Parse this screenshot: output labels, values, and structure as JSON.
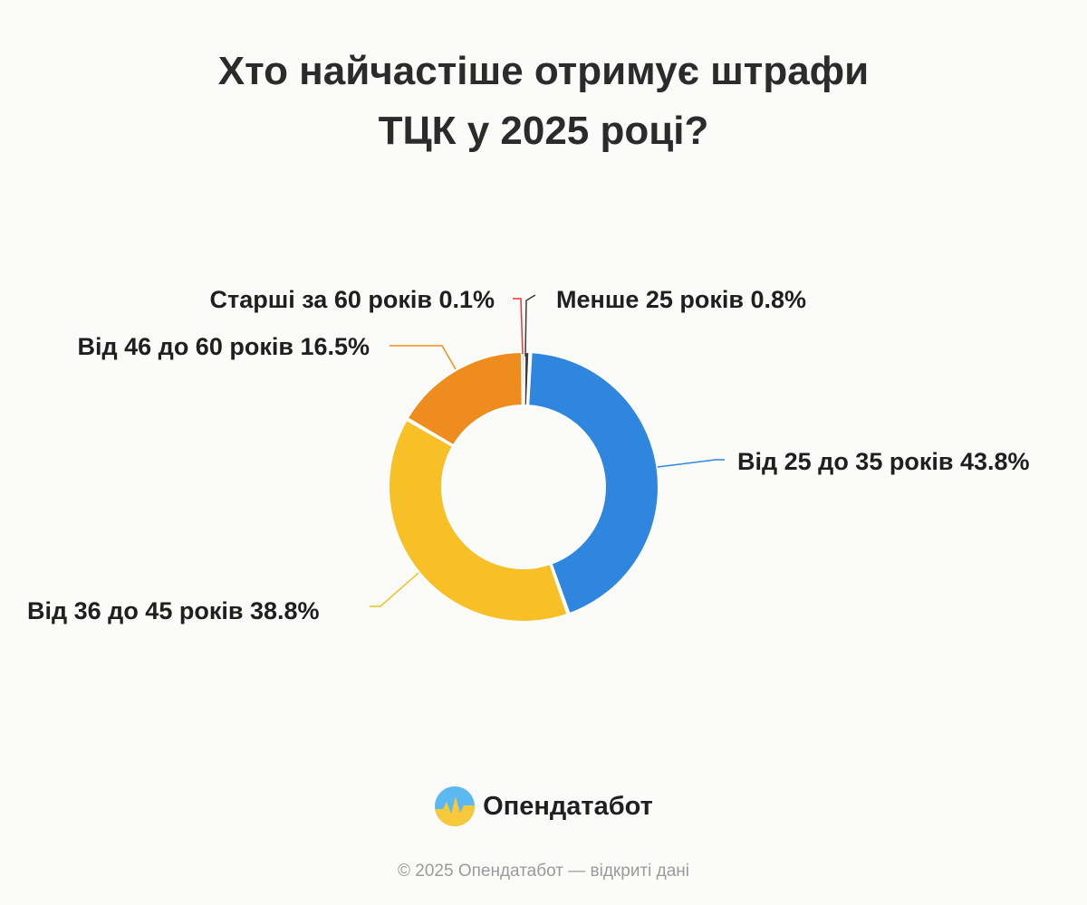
{
  "title_lines": [
    "Хто найчастіше отримує штрафи",
    "ТЦК у 2025 році?"
  ],
  "brand": {
    "name": "Опендатабот",
    "icon": "opendatabot-logo-icon"
  },
  "footer": "© 2025 Опендатабот — відкриті дані",
  "chart_data": {
    "type": "pie",
    "variant": "donut",
    "title": "Хто найчастіше отримує штрафи ТЦК у 2025 році?",
    "unit": "%",
    "slices": [
      {
        "label": "Менше 25 років",
        "value": 0.8,
        "display": "Менше 25 років 0.8%",
        "color": "#3a3a3a"
      },
      {
        "label": "Від 25 до 35 років",
        "value": 43.8,
        "display": "Від 25 до 35 років 43.8%",
        "color": "#2e86de"
      },
      {
        "label": "Від 36 до 45 років",
        "value": 38.8,
        "display": "Від 36 до 45 років 38.8%",
        "color": "#f6c026"
      },
      {
        "label": "Від 46 до 60 років",
        "value": 16.5,
        "display": "Від 46 до 60 років 16.5%",
        "color": "#ef8c1e"
      },
      {
        "label": "Старші за 60 років",
        "value": 0.1,
        "display": "Старші за 60 років 0.1%",
        "color": "#e53935"
      }
    ],
    "start_angle_deg": 0,
    "direction": "clockwise",
    "legend": "none",
    "labels": "outside with leader lines"
  }
}
